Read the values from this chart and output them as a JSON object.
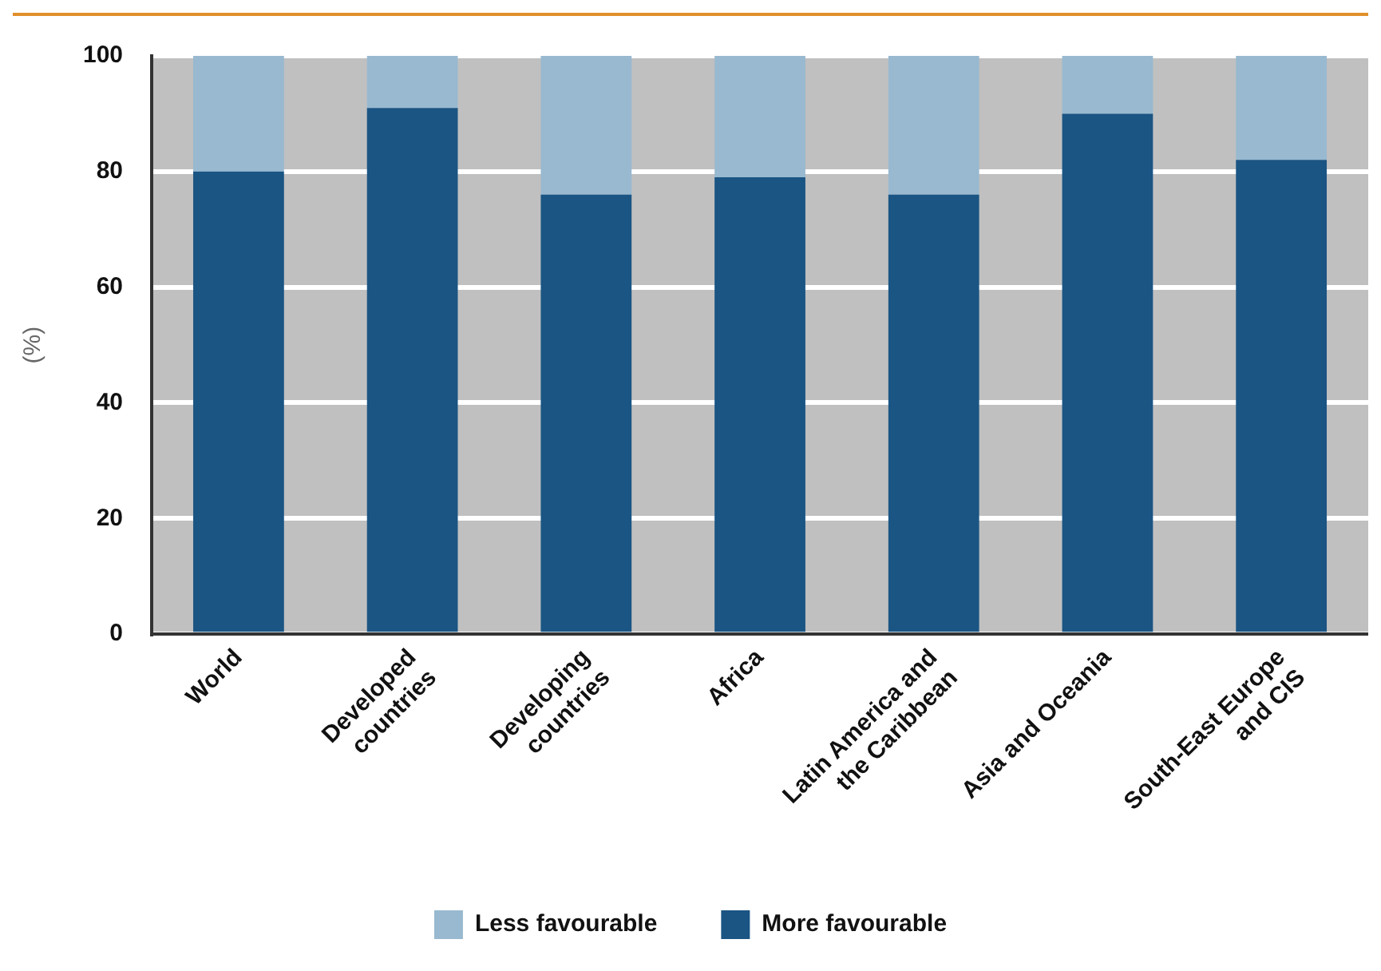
{
  "chart_data": {
    "type": "bar",
    "stacked": true,
    "ylabel": "(%)",
    "categories": [
      "World",
      "Developed countries",
      "Developing countries",
      "Africa",
      "Latin America and the Caribbean",
      "Asia and Oceania",
      "South-East Europe and CIS"
    ],
    "series": [
      {
        "name": "More favourable",
        "color": "#1a5584",
        "values": [
          80,
          91,
          76,
          79,
          76,
          90,
          82
        ]
      },
      {
        "name": "Less favourable",
        "color": "#98b9d0",
        "values": [
          20,
          9,
          24,
          21,
          24,
          10,
          18
        ]
      }
    ],
    "ylim": [
      0,
      100
    ],
    "yticks": [
      0,
      20,
      40,
      60,
      80,
      100
    ],
    "grid": "y",
    "legend": "bottom"
  }
}
